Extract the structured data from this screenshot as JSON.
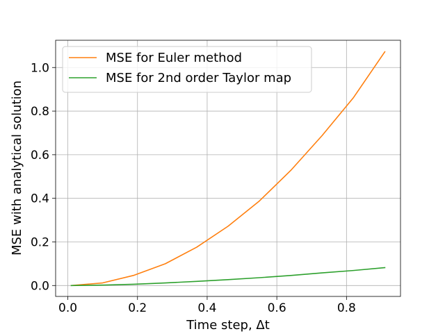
{
  "chart_data": {
    "type": "line",
    "title": "",
    "xlabel": "Time step, Δt",
    "ylabel": "MSE with analytical solution",
    "xlim": [
      -0.035,
      0.955
    ],
    "ylim": [
      -0.05,
      1.125
    ],
    "grid": true,
    "legend_position": "top-left",
    "x_ticks": [
      {
        "value": 0.0,
        "label": "0.0"
      },
      {
        "value": 0.2,
        "label": "0.2"
      },
      {
        "value": 0.4,
        "label": "0.4"
      },
      {
        "value": 0.6,
        "label": "0.6"
      },
      {
        "value": 0.8,
        "label": "0.8"
      }
    ],
    "y_ticks": [
      {
        "value": 0.0,
        "label": "0.0"
      },
      {
        "value": 0.2,
        "label": "0.2"
      },
      {
        "value": 0.4,
        "label": "0.4"
      },
      {
        "value": 0.6,
        "label": "0.6"
      },
      {
        "value": 0.8,
        "label": "0.8"
      },
      {
        "value": 1.0,
        "label": "1.0"
      }
    ],
    "x": [
      0.01,
      0.1,
      0.19,
      0.28,
      0.37,
      0.46,
      0.55,
      0.64,
      0.73,
      0.82,
      0.91
    ],
    "series": [
      {
        "name": "MSE for Euler method",
        "color": "#ff7f0e",
        "values": [
          0.0,
          0.012,
          0.047,
          0.1,
          0.176,
          0.272,
          0.388,
          0.528,
          0.688,
          0.862,
          1.072
        ]
      },
      {
        "name": "MSE for 2nd order Taylor map",
        "color": "#2ca02c",
        "values": [
          0.0,
          0.002,
          0.006,
          0.012,
          0.019,
          0.027,
          0.036,
          0.046,
          0.058,
          0.069,
          0.082
        ]
      }
    ]
  }
}
